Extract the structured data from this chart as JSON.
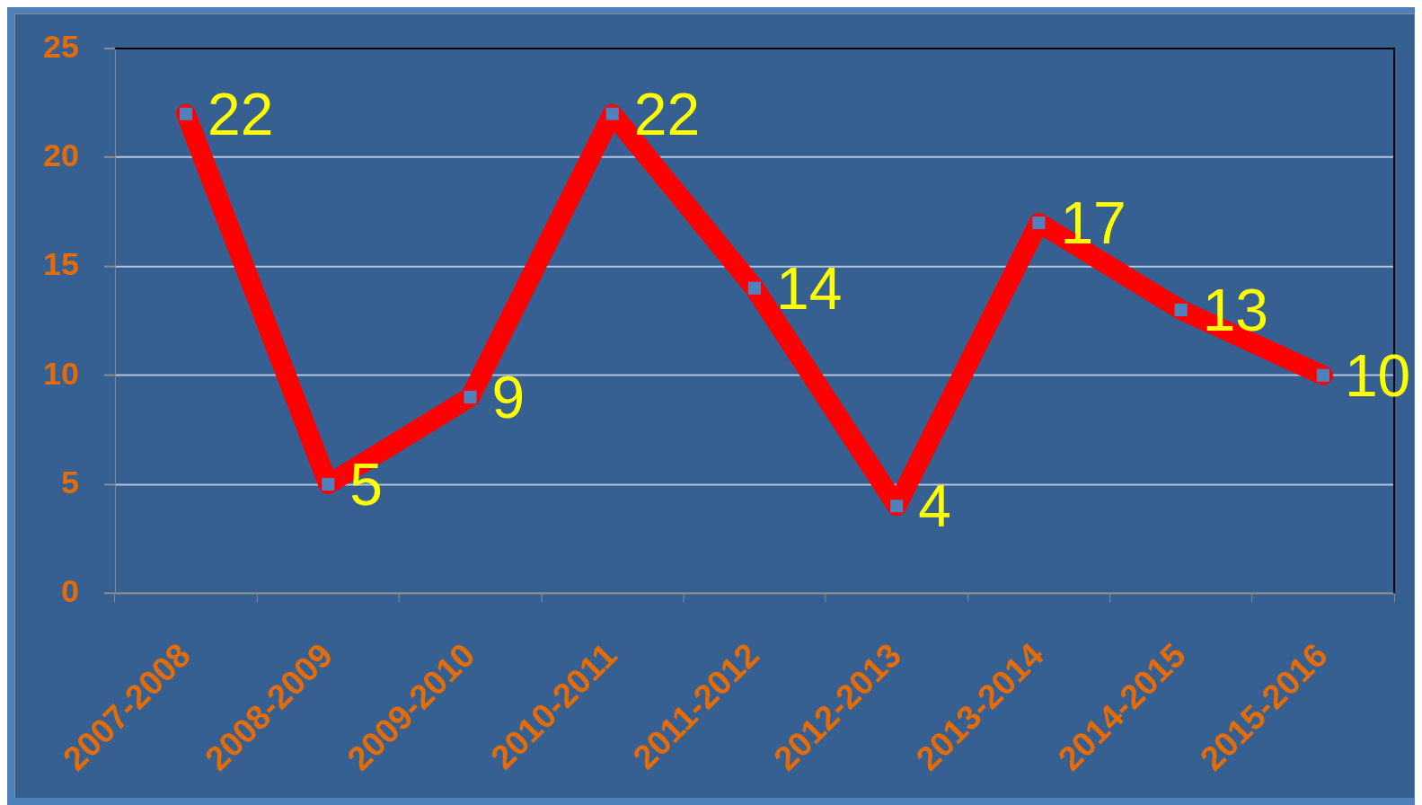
{
  "chart_data": {
    "type": "line",
    "categories": [
      "2007-2008",
      "2008-2009",
      "2009-2010",
      "2010-2011",
      "2011-2012",
      "2012-2013",
      "2013-2014",
      "2014-2015",
      "2015-2016"
    ],
    "series": [
      {
        "color": "#ff0000",
        "values": [
          22,
          5,
          9,
          22,
          14,
          4,
          17,
          13,
          10
        ]
      }
    ],
    "ylim": [
      0,
      25
    ],
    "yticks": [
      0,
      5,
      10,
      15,
      20,
      25
    ],
    "grid": "y",
    "marker": "square",
    "line_style": "solid",
    "data_labels": true
  }
}
